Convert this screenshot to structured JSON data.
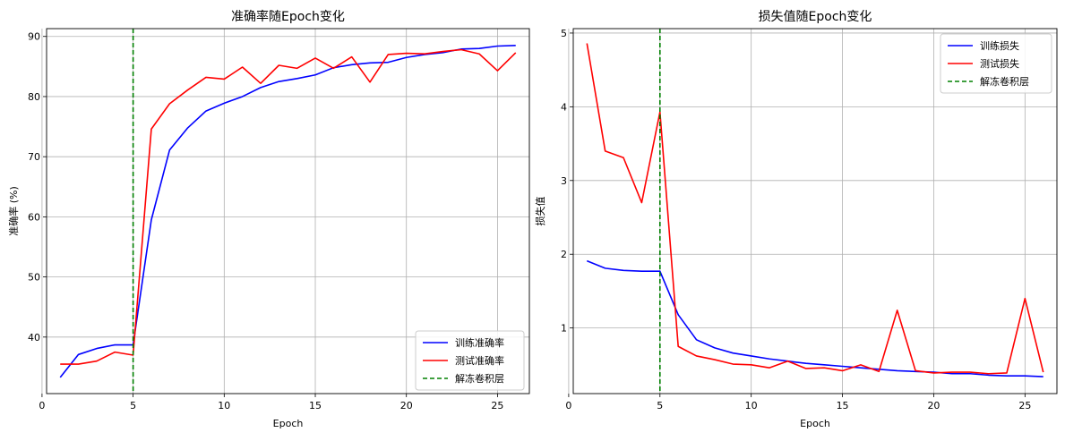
{
  "legend_title": "",
  "chart_data": [
    {
      "type": "line",
      "title": "准确率随Epoch变化",
      "xlabel": "Epoch",
      "ylabel": "准确率 (%)",
      "xlim": [
        0.25,
        26.75
      ],
      "ylim": [
        30.6,
        91.3
      ],
      "xticks": [
        0,
        5,
        10,
        15,
        20,
        25
      ],
      "yticks": [
        40,
        50,
        60,
        70,
        80,
        90
      ],
      "grid": true,
      "legend_position": "bottom-right",
      "x": [
        1,
        2,
        3,
        4,
        5,
        6,
        7,
        8,
        9,
        10,
        11,
        12,
        13,
        14,
        15,
        16,
        17,
        18,
        19,
        20,
        21,
        22,
        23,
        24,
        25,
        26
      ],
      "series": [
        {
          "name": "训练准确率",
          "color": "#0000ff",
          "values": [
            33.3,
            37.1,
            38.1,
            38.7,
            38.7,
            59.5,
            71.1,
            74.8,
            77.6,
            78.9,
            80.0,
            81.5,
            82.5,
            83.0,
            83.6,
            84.8,
            85.3,
            85.6,
            85.7,
            86.5,
            87.0,
            87.3,
            87.9,
            88.0,
            88.4,
            88.5
          ]
        },
        {
          "name": "测试准确率",
          "color": "#ff0000",
          "values": [
            35.5,
            35.5,
            36.0,
            37.5,
            37.0,
            74.6,
            78.8,
            81.1,
            83.2,
            82.9,
            84.9,
            82.2,
            85.2,
            84.7,
            86.4,
            84.7,
            86.6,
            82.4,
            87.0,
            87.2,
            87.1,
            87.5,
            87.8,
            87.1,
            84.3,
            87.3
          ]
        }
      ],
      "vline": {
        "x": 5,
        "name": "解冻卷积层",
        "color": "#008000",
        "style": "dashed"
      }
    },
    {
      "type": "line",
      "title": "损失值随Epoch变化",
      "xlabel": "Epoch",
      "ylabel": "损失值",
      "xlim": [
        0.25,
        26.75
      ],
      "ylim": [
        0.11,
        5.06
      ],
      "xticks": [
        0,
        5,
        10,
        15,
        20,
        25
      ],
      "yticks": [
        1,
        2,
        3,
        4,
        5
      ],
      "grid": true,
      "legend_position": "top-right",
      "x": [
        1,
        2,
        3,
        4,
        5,
        6,
        7,
        8,
        9,
        10,
        11,
        12,
        13,
        14,
        15,
        16,
        17,
        18,
        19,
        20,
        21,
        22,
        23,
        24,
        25,
        26
      ],
      "series": [
        {
          "name": "训练损失",
          "color": "#0000ff",
          "values": [
            1.91,
            1.81,
            1.78,
            1.77,
            1.77,
            1.18,
            0.84,
            0.73,
            0.66,
            0.62,
            0.58,
            0.55,
            0.52,
            0.5,
            0.48,
            0.46,
            0.44,
            0.42,
            0.41,
            0.4,
            0.38,
            0.38,
            0.36,
            0.35,
            0.35,
            0.34
          ]
        },
        {
          "name": "测试损失",
          "color": "#ff0000",
          "values": [
            4.86,
            3.4,
            3.31,
            2.7,
            3.93,
            0.75,
            0.62,
            0.57,
            0.51,
            0.5,
            0.46,
            0.55,
            0.45,
            0.46,
            0.42,
            0.5,
            0.41,
            1.24,
            0.42,
            0.39,
            0.4,
            0.4,
            0.38,
            0.39,
            1.4,
            0.4
          ]
        }
      ],
      "vline": {
        "x": 5,
        "name": "解冻卷积层",
        "color": "#008000",
        "style": "dashed"
      }
    }
  ]
}
